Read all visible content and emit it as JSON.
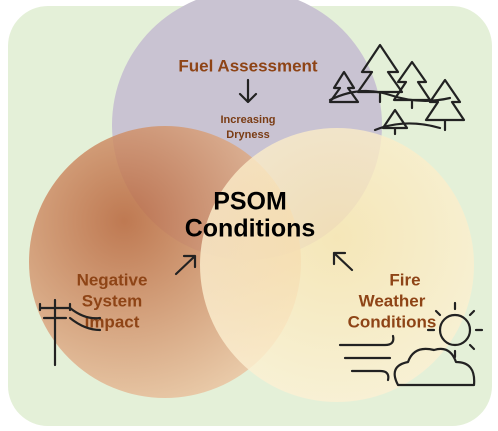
{
  "nodes": [
    {
      "label": "Fuel Assessment",
      "note": [
        "Increasing",
        "Dryness"
      ]
    },
    {
      "label": [
        "Negative",
        "System",
        "Impact"
      ]
    },
    {
      "label": [
        "Fire",
        "Weather",
        "Conditions"
      ]
    }
  ],
  "center": {
    "label": [
      "PSOM",
      "Conditions"
    ]
  }
}
